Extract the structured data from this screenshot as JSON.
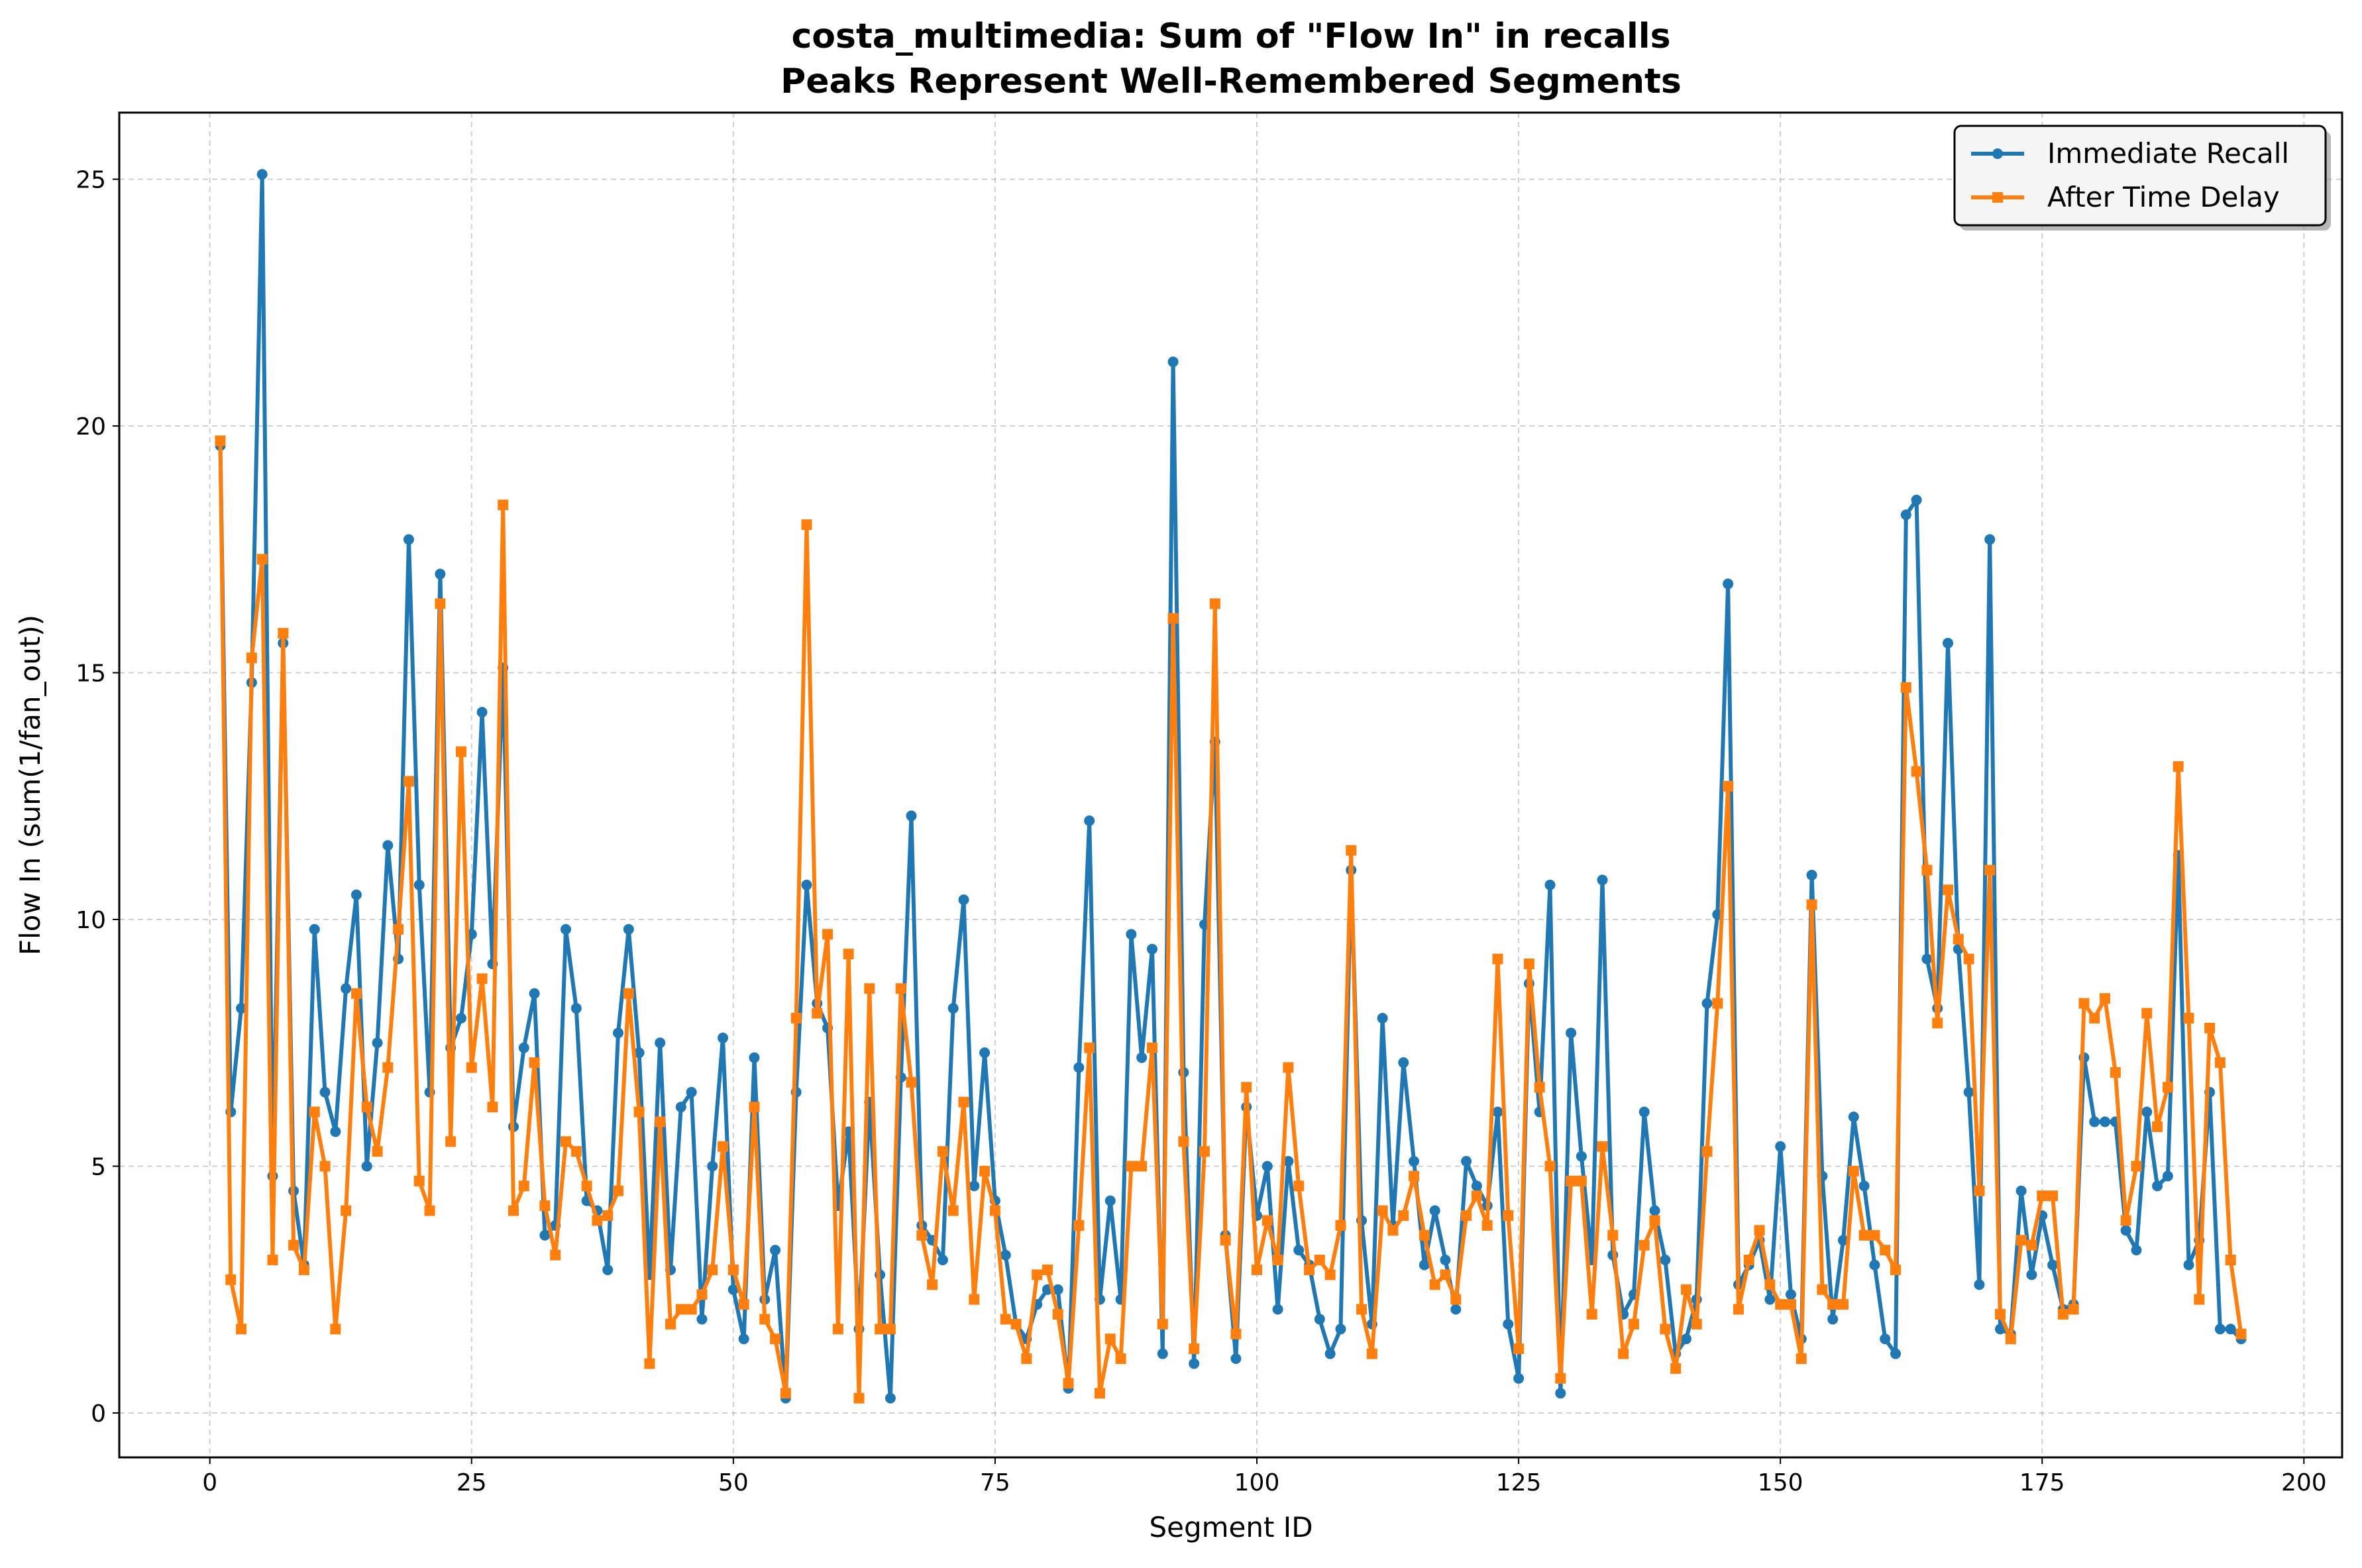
{
  "chart_data": {
    "type": "line",
    "title": "costa_multimedia: Sum of \"Flow In\" in recalls",
    "subtitle": "Peaks Represent Well-Remembered Segments",
    "xlabel": "Segment ID",
    "ylabel": "Flow In (sum(1/fan_out))",
    "xlim": [
      -8.65,
      203.65
    ],
    "ylim": [
      -0.9,
      26.35
    ],
    "xticks": [
      0,
      25,
      50,
      75,
      100,
      125,
      150,
      175,
      200
    ],
    "yticks": [
      0,
      5,
      10,
      15,
      20,
      25
    ],
    "grid": true,
    "legend_position": "top-right",
    "series": [
      {
        "name": "Immediate Recall",
        "color": "#1f77b4",
        "marker": "circle",
        "x": [
          1,
          2,
          3,
          4,
          5,
          6,
          7,
          8,
          9,
          10,
          11,
          12,
          13,
          14,
          15,
          16,
          17,
          18,
          19,
          20,
          21,
          22,
          23,
          24,
          25,
          26,
          27,
          28,
          29,
          30,
          31,
          32,
          33,
          34,
          35,
          36,
          37,
          38,
          39,
          40,
          41,
          42,
          43,
          44,
          45,
          46,
          47,
          48,
          49,
          50,
          51,
          52,
          53,
          54,
          55,
          56,
          57,
          58,
          59,
          60,
          61,
          62,
          63,
          64,
          65,
          66,
          67,
          68,
          69,
          70,
          71,
          72,
          73,
          74,
          75,
          76,
          77,
          78,
          79,
          80,
          81,
          82,
          83,
          84,
          85,
          86,
          87,
          88,
          89,
          90,
          91,
          92,
          93,
          94,
          95,
          96,
          97,
          98,
          99,
          100,
          101,
          102,
          103,
          104,
          105,
          106,
          107,
          108,
          109,
          110,
          111,
          112,
          113,
          114,
          115,
          116,
          117,
          118,
          119,
          120,
          121,
          122,
          123,
          124,
          125,
          126,
          127,
          128,
          129,
          130,
          131,
          132,
          133,
          134,
          135,
          136,
          137,
          138,
          139,
          140,
          141,
          142,
          143,
          144,
          145,
          146,
          147,
          148,
          149,
          150,
          151,
          152,
          153,
          154,
          155,
          156,
          157,
          158,
          159,
          160,
          161,
          162,
          163,
          164,
          165,
          166,
          167,
          168,
          169,
          170,
          171,
          172,
          173,
          174,
          175,
          176,
          177,
          178,
          179,
          180,
          181,
          182,
          183,
          184,
          185,
          186,
          187,
          188,
          189,
          190,
          191,
          192,
          193,
          194
        ],
        "values": [
          19.6,
          6.1,
          8.2,
          14.8,
          25.1,
          4.8,
          15.6,
          4.5,
          3.0,
          9.8,
          6.5,
          5.7,
          8.6,
          10.5,
          5.0,
          7.5,
          11.5,
          9.2,
          17.7,
          10.7,
          6.5,
          17.0,
          7.4,
          8.0,
          9.7,
          14.2,
          9.1,
          15.1,
          5.8,
          7.4,
          8.5,
          3.6,
          3.8,
          9.8,
          8.2,
          4.3,
          4.1,
          2.9,
          7.7,
          9.8,
          7.3,
          2.8,
          7.5,
          2.9,
          6.2,
          6.5,
          1.9,
          5.0,
          7.6,
          2.5,
          1.5,
          7.2,
          2.3,
          3.3,
          0.3,
          6.5,
          10.7,
          8.3,
          7.8,
          4.2,
          5.7,
          1.7,
          6.3,
          2.8,
          0.3,
          6.8,
          12.1,
          3.8,
          3.5,
          3.1,
          8.2,
          10.4,
          4.6,
          7.3,
          4.3,
          3.2,
          1.8,
          1.5,
          2.2,
          2.5,
          2.5,
          0.5,
          7.0,
          12.0,
          2.3,
          4.3,
          2.3,
          9.7,
          7.2,
          9.4,
          1.2,
          21.3,
          6.9,
          1.0,
          9.9,
          13.6,
          3.6,
          1.1,
          6.2,
          4.0,
          5.0,
          2.1,
          5.1,
          3.3,
          3.0,
          1.9,
          1.2,
          1.7,
          11.0,
          3.9,
          1.8,
          8.0,
          3.8,
          7.1,
          5.1,
          3.0,
          4.1,
          3.1,
          2.1,
          5.1,
          4.6,
          4.2,
          6.1,
          1.8,
          0.7,
          8.7,
          6.1,
          10.7,
          0.4,
          7.7,
          5.2,
          3.1,
          10.8,
          3.2,
          2.0,
          2.4,
          6.1,
          4.1,
          3.1,
          1.2,
          1.5,
          2.3,
          8.3,
          10.1,
          16.8,
          2.6,
          3.0,
          3.5,
          2.3,
          5.4,
          2.4,
          1.5,
          10.9,
          4.8,
          1.9,
          3.5,
          6.0,
          4.6,
          3.0,
          1.5,
          1.2,
          18.2,
          18.5,
          9.2,
          8.2,
          15.6,
          9.4,
          6.5,
          2.6,
          17.7,
          1.7,
          1.6,
          4.5,
          2.8,
          4.0,
          3.0,
          2.1,
          2.2,
          7.2,
          5.9,
          5.9,
          5.9,
          3.7,
          3.3,
          6.1,
          4.6,
          4.8,
          11.3,
          3.0,
          3.5,
          6.5,
          1.7,
          1.7,
          1.5
        ]
      },
      {
        "name": "After Time Delay",
        "color": "#ff7f0e",
        "marker": "square",
        "x": [
          1,
          2,
          3,
          4,
          5,
          6,
          7,
          8,
          9,
          10,
          11,
          12,
          13,
          14,
          15,
          16,
          17,
          18,
          19,
          20,
          21,
          22,
          23,
          24,
          25,
          26,
          27,
          28,
          29,
          30,
          31,
          32,
          33,
          34,
          35,
          36,
          37,
          38,
          39,
          40,
          41,
          42,
          43,
          44,
          45,
          46,
          47,
          48,
          49,
          50,
          51,
          52,
          53,
          54,
          55,
          56,
          57,
          58,
          59,
          60,
          61,
          62,
          63,
          64,
          65,
          66,
          67,
          68,
          69,
          70,
          71,
          72,
          73,
          74,
          75,
          76,
          77,
          78,
          79,
          80,
          81,
          82,
          83,
          84,
          85,
          86,
          87,
          88,
          89,
          90,
          91,
          92,
          93,
          94,
          95,
          96,
          97,
          98,
          99,
          100,
          101,
          102,
          103,
          104,
          105,
          106,
          107,
          108,
          109,
          110,
          111,
          112,
          113,
          114,
          115,
          116,
          117,
          118,
          119,
          120,
          121,
          122,
          123,
          124,
          125,
          126,
          127,
          128,
          129,
          130,
          131,
          132,
          133,
          134,
          135,
          136,
          137,
          138,
          139,
          140,
          141,
          142,
          143,
          144,
          145,
          146,
          147,
          148,
          149,
          150,
          151,
          152,
          153,
          154,
          155,
          156,
          157,
          158,
          159,
          160,
          161,
          162,
          163,
          164,
          165,
          166,
          167,
          168,
          169,
          170,
          171,
          172,
          173,
          174,
          175,
          176,
          177,
          178,
          179,
          180,
          181,
          182,
          183,
          184,
          185,
          186,
          187,
          188,
          189,
          190,
          191,
          192,
          193,
          194
        ],
        "values": [
          19.7,
          2.7,
          1.7,
          15.3,
          17.3,
          3.1,
          15.8,
          3.4,
          2.9,
          6.1,
          5.0,
          1.7,
          4.1,
          8.5,
          6.2,
          5.3,
          7.0,
          9.8,
          12.8,
          4.7,
          4.1,
          16.4,
          5.5,
          13.4,
          7.0,
          8.8,
          6.2,
          18.4,
          4.1,
          4.6,
          7.1,
          4.2,
          3.2,
          5.5,
          5.3,
          4.6,
          3.9,
          4.0,
          4.5,
          8.5,
          6.1,
          1.0,
          5.9,
          1.8,
          2.1,
          2.1,
          2.4,
          2.9,
          5.4,
          2.9,
          2.2,
          6.2,
          1.9,
          1.5,
          0.4,
          8.0,
          18.0,
          8.1,
          9.7,
          1.7,
          9.3,
          0.3,
          8.6,
          1.7,
          1.7,
          8.6,
          6.7,
          3.6,
          2.6,
          5.3,
          4.1,
          6.3,
          2.3,
          4.9,
          4.1,
          1.9,
          1.8,
          1.1,
          2.8,
          2.9,
          2.0,
          0.6,
          3.8,
          7.4,
          0.4,
          1.5,
          1.1,
          5.0,
          5.0,
          7.4,
          1.8,
          16.1,
          5.5,
          1.3,
          5.3,
          16.4,
          3.5,
          1.6,
          6.6,
          2.9,
          3.9,
          3.1,
          7.0,
          4.6,
          2.9,
          3.1,
          2.8,
          3.8,
          11.4,
          2.1,
          1.2,
          4.1,
          3.7,
          4.0,
          4.8,
          3.6,
          2.6,
          2.8,
          2.3,
          4.0,
          4.4,
          3.8,
          9.2,
          4.0,
          1.3,
          9.1,
          6.6,
          5.0,
          0.7,
          4.7,
          4.7,
          2.0,
          5.4,
          3.6,
          1.2,
          1.8,
          3.4,
          3.9,
          1.7,
          0.9,
          2.5,
          1.8,
          5.3,
          8.3,
          12.7,
          2.1,
          3.1,
          3.7,
          2.6,
          2.2,
          2.2,
          1.1,
          10.3,
          2.5,
          2.2,
          2.2,
          4.9,
          3.6,
          3.6,
          3.3,
          2.9,
          14.7,
          13.0,
          11.0,
          7.9,
          10.6,
          9.6,
          9.2,
          4.5,
          11.0,
          2.0,
          1.5,
          3.5,
          3.4,
          4.4,
          4.4,
          2.0,
          2.1,
          8.3,
          8.0,
          8.4,
          6.9,
          3.9,
          5.0,
          8.1,
          5.8,
          6.6,
          13.1,
          8.0,
          2.3,
          7.8,
          7.1,
          3.1,
          1.6
        ]
      }
    ]
  }
}
